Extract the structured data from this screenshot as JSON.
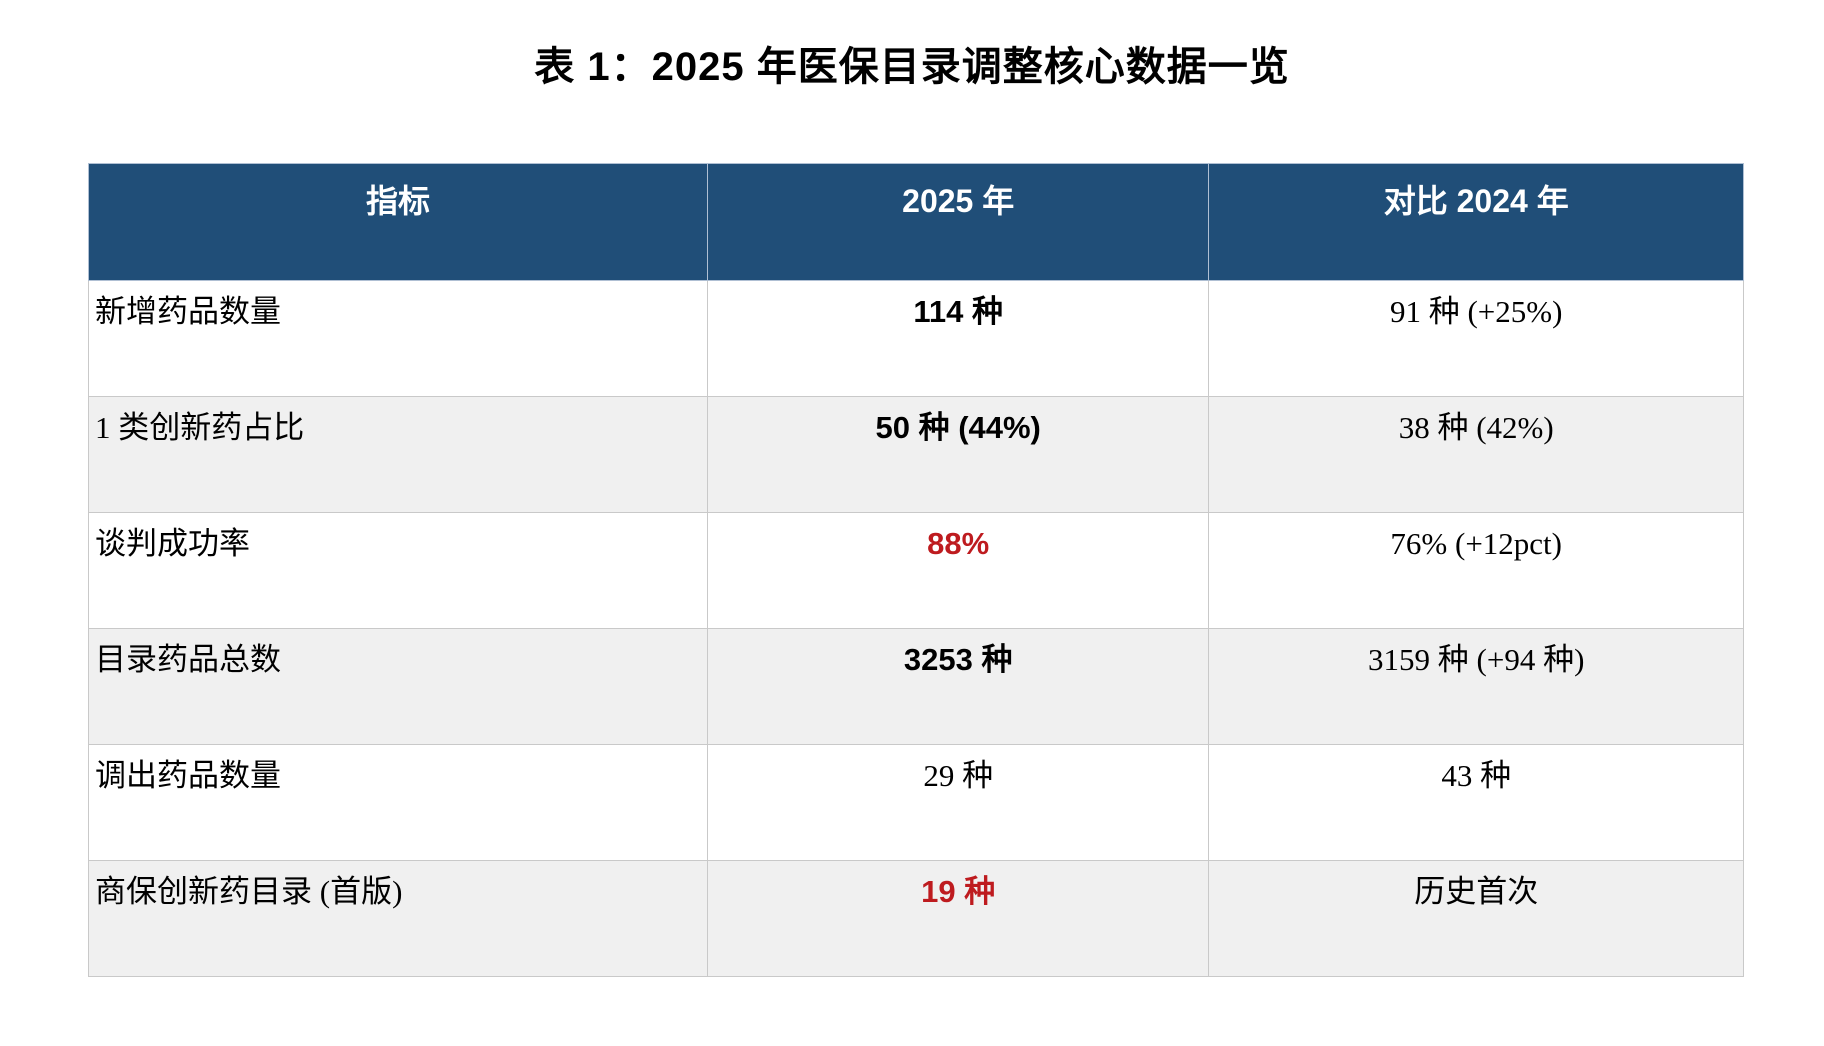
{
  "page": {
    "title": "表 1：2025 年医保目录调整核心数据一览"
  },
  "colors": {
    "header_bg": "#204E78",
    "header_text": "#FFFFFF",
    "highlight_red": "#BE1B1F",
    "row_alt_bg": "#F0F0F0",
    "border": "#C9C9C9",
    "text": "#000000"
  },
  "table": {
    "columns": [
      "指标",
      "2025 年",
      "对比 2024 年"
    ],
    "rows": [
      {
        "indicator": "新增药品数量",
        "value_2025": "114 种",
        "value_2025_style": "bold",
        "value_2024": "91 种 (+25%)"
      },
      {
        "indicator": "1 类创新药占比",
        "value_2025": "50 种 (44%)",
        "value_2025_style": "bold",
        "value_2024": "38 种 (42%)"
      },
      {
        "indicator": "谈判成功率",
        "value_2025": "88%",
        "value_2025_style": "bold red",
        "value_2024": "76% (+12pct)"
      },
      {
        "indicator": "目录药品总数",
        "value_2025": "3253 种",
        "value_2025_style": "bold",
        "value_2024": "3159 种 (+94 种)"
      },
      {
        "indicator": "调出药品数量",
        "value_2025": "29 种",
        "value_2025_style": "",
        "value_2024": "43 种"
      },
      {
        "indicator": "商保创新药目录 (首版)",
        "value_2025": "19 种",
        "value_2025_style": "bold red",
        "value_2024": "历史首次"
      }
    ]
  }
}
